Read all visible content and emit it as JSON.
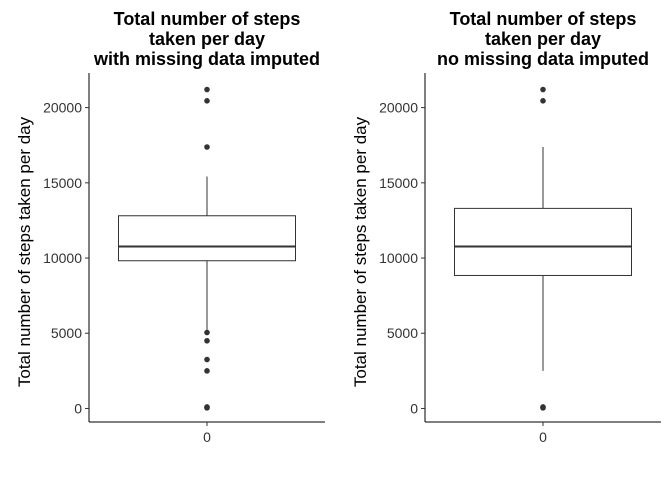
{
  "chart_data": [
    {
      "type": "boxplot",
      "title": [
        "Total number of steps",
        "taken per day",
        "with missing data imputed"
      ],
      "ylabel": "Total number of steps taken per day",
      "xlabel": "",
      "categories": [
        "0"
      ],
      "yticks": [
        0,
        5000,
        10000,
        15000,
        20000
      ],
      "ylim": [
        -900,
        22300
      ],
      "stats": {
        "lower_whisker": 5100,
        "q1": 9820,
        "median": 10770,
        "q3": 12810,
        "upper_whisker": 15420
      },
      "outliers": [
        21200,
        20450,
        17380,
        5050,
        4500,
        3250,
        2500,
        40,
        100
      ],
      "grid": false,
      "legend": "none"
    },
    {
      "type": "boxplot",
      "title": [
        "Total number of steps",
        "taken per day",
        "no missing data imputed"
      ],
      "ylabel": "Total number of steps taken per day",
      "xlabel": "",
      "categories": [
        "0"
      ],
      "yticks": [
        0,
        5000,
        10000,
        15000,
        20000
      ],
      "ylim": [
        -900,
        22300
      ],
      "stats": {
        "lower_whisker": 2500,
        "q1": 8840,
        "median": 10770,
        "q3": 13300,
        "upper_whisker": 17380
      },
      "outliers": [
        21200,
        20450,
        40,
        100
      ],
      "grid": false,
      "legend": "none"
    }
  ]
}
